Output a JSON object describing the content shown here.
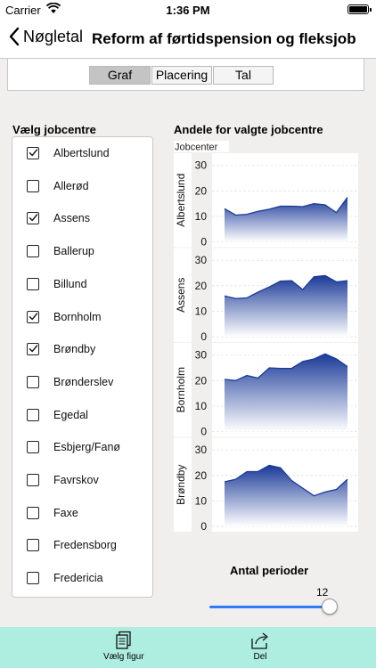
{
  "status": {
    "carrier": "Carrier",
    "time": "1:36 PM"
  },
  "nav": {
    "back_label": "Nøgletal",
    "title": "Reform af førtidspension og fleksjob"
  },
  "segments": [
    {
      "label": "Graf",
      "active": true
    },
    {
      "label": "Placering",
      "active": false
    },
    {
      "label": "Tal",
      "active": false
    }
  ],
  "list": {
    "title": "Vælg jobcentre",
    "items": [
      {
        "label": "Albertslund",
        "checked": true
      },
      {
        "label": "Allerød",
        "checked": false
      },
      {
        "label": "Assens",
        "checked": true
      },
      {
        "label": "Ballerup",
        "checked": false
      },
      {
        "label": "Billund",
        "checked": false
      },
      {
        "label": "Bornholm",
        "checked": true
      },
      {
        "label": "Brøndby",
        "checked": true
      },
      {
        "label": "Brønderslev",
        "checked": false
      },
      {
        "label": "Egedal",
        "checked": false
      },
      {
        "label": "Esbjerg/Fanø",
        "checked": false
      },
      {
        "label": "Favrskov",
        "checked": false
      },
      {
        "label": "Faxe",
        "checked": false
      },
      {
        "label": "Fredensborg",
        "checked": false
      },
      {
        "label": "Fredericia",
        "checked": false
      }
    ]
  },
  "chart_data": {
    "type": "area",
    "title": "Andele for valgte jobcentre",
    "facet_label": "Jobcenter",
    "ylim": [
      0,
      32
    ],
    "yticks": [
      0,
      10,
      20,
      30
    ],
    "grid": true,
    "colors": {
      "fill_top": "#1a3a98",
      "fill_bottom": "#ffffff",
      "line": "#1a3a98"
    },
    "series": [
      {
        "name": "Albertslund",
        "values": [
          13.0,
          10.5,
          10.8,
          12.0,
          12.8,
          14.0,
          14.0,
          13.8,
          15.0,
          14.5,
          11.5,
          17.5
        ]
      },
      {
        "name": "Assens",
        "values": [
          16.0,
          15.0,
          15.2,
          17.5,
          19.5,
          21.8,
          22.0,
          18.5,
          23.5,
          24.0,
          21.5,
          22.0
        ]
      },
      {
        "name": "Bornholm",
        "values": [
          20.5,
          20.0,
          22.0,
          21.0,
          25.0,
          24.8,
          24.8,
          27.5,
          28.5,
          30.5,
          28.5,
          25.5
        ]
      },
      {
        "name": "Brøndby",
        "values": [
          17.5,
          18.5,
          21.5,
          21.5,
          24.0,
          23.0,
          18.0,
          15.0,
          12.0,
          13.5,
          14.5,
          18.5
        ]
      }
    ]
  },
  "slider": {
    "title": "Antal perioder",
    "value": "12",
    "fraction": 1.0
  },
  "tabbar": {
    "left_label": "Vælg figur",
    "right_label": "Del"
  }
}
